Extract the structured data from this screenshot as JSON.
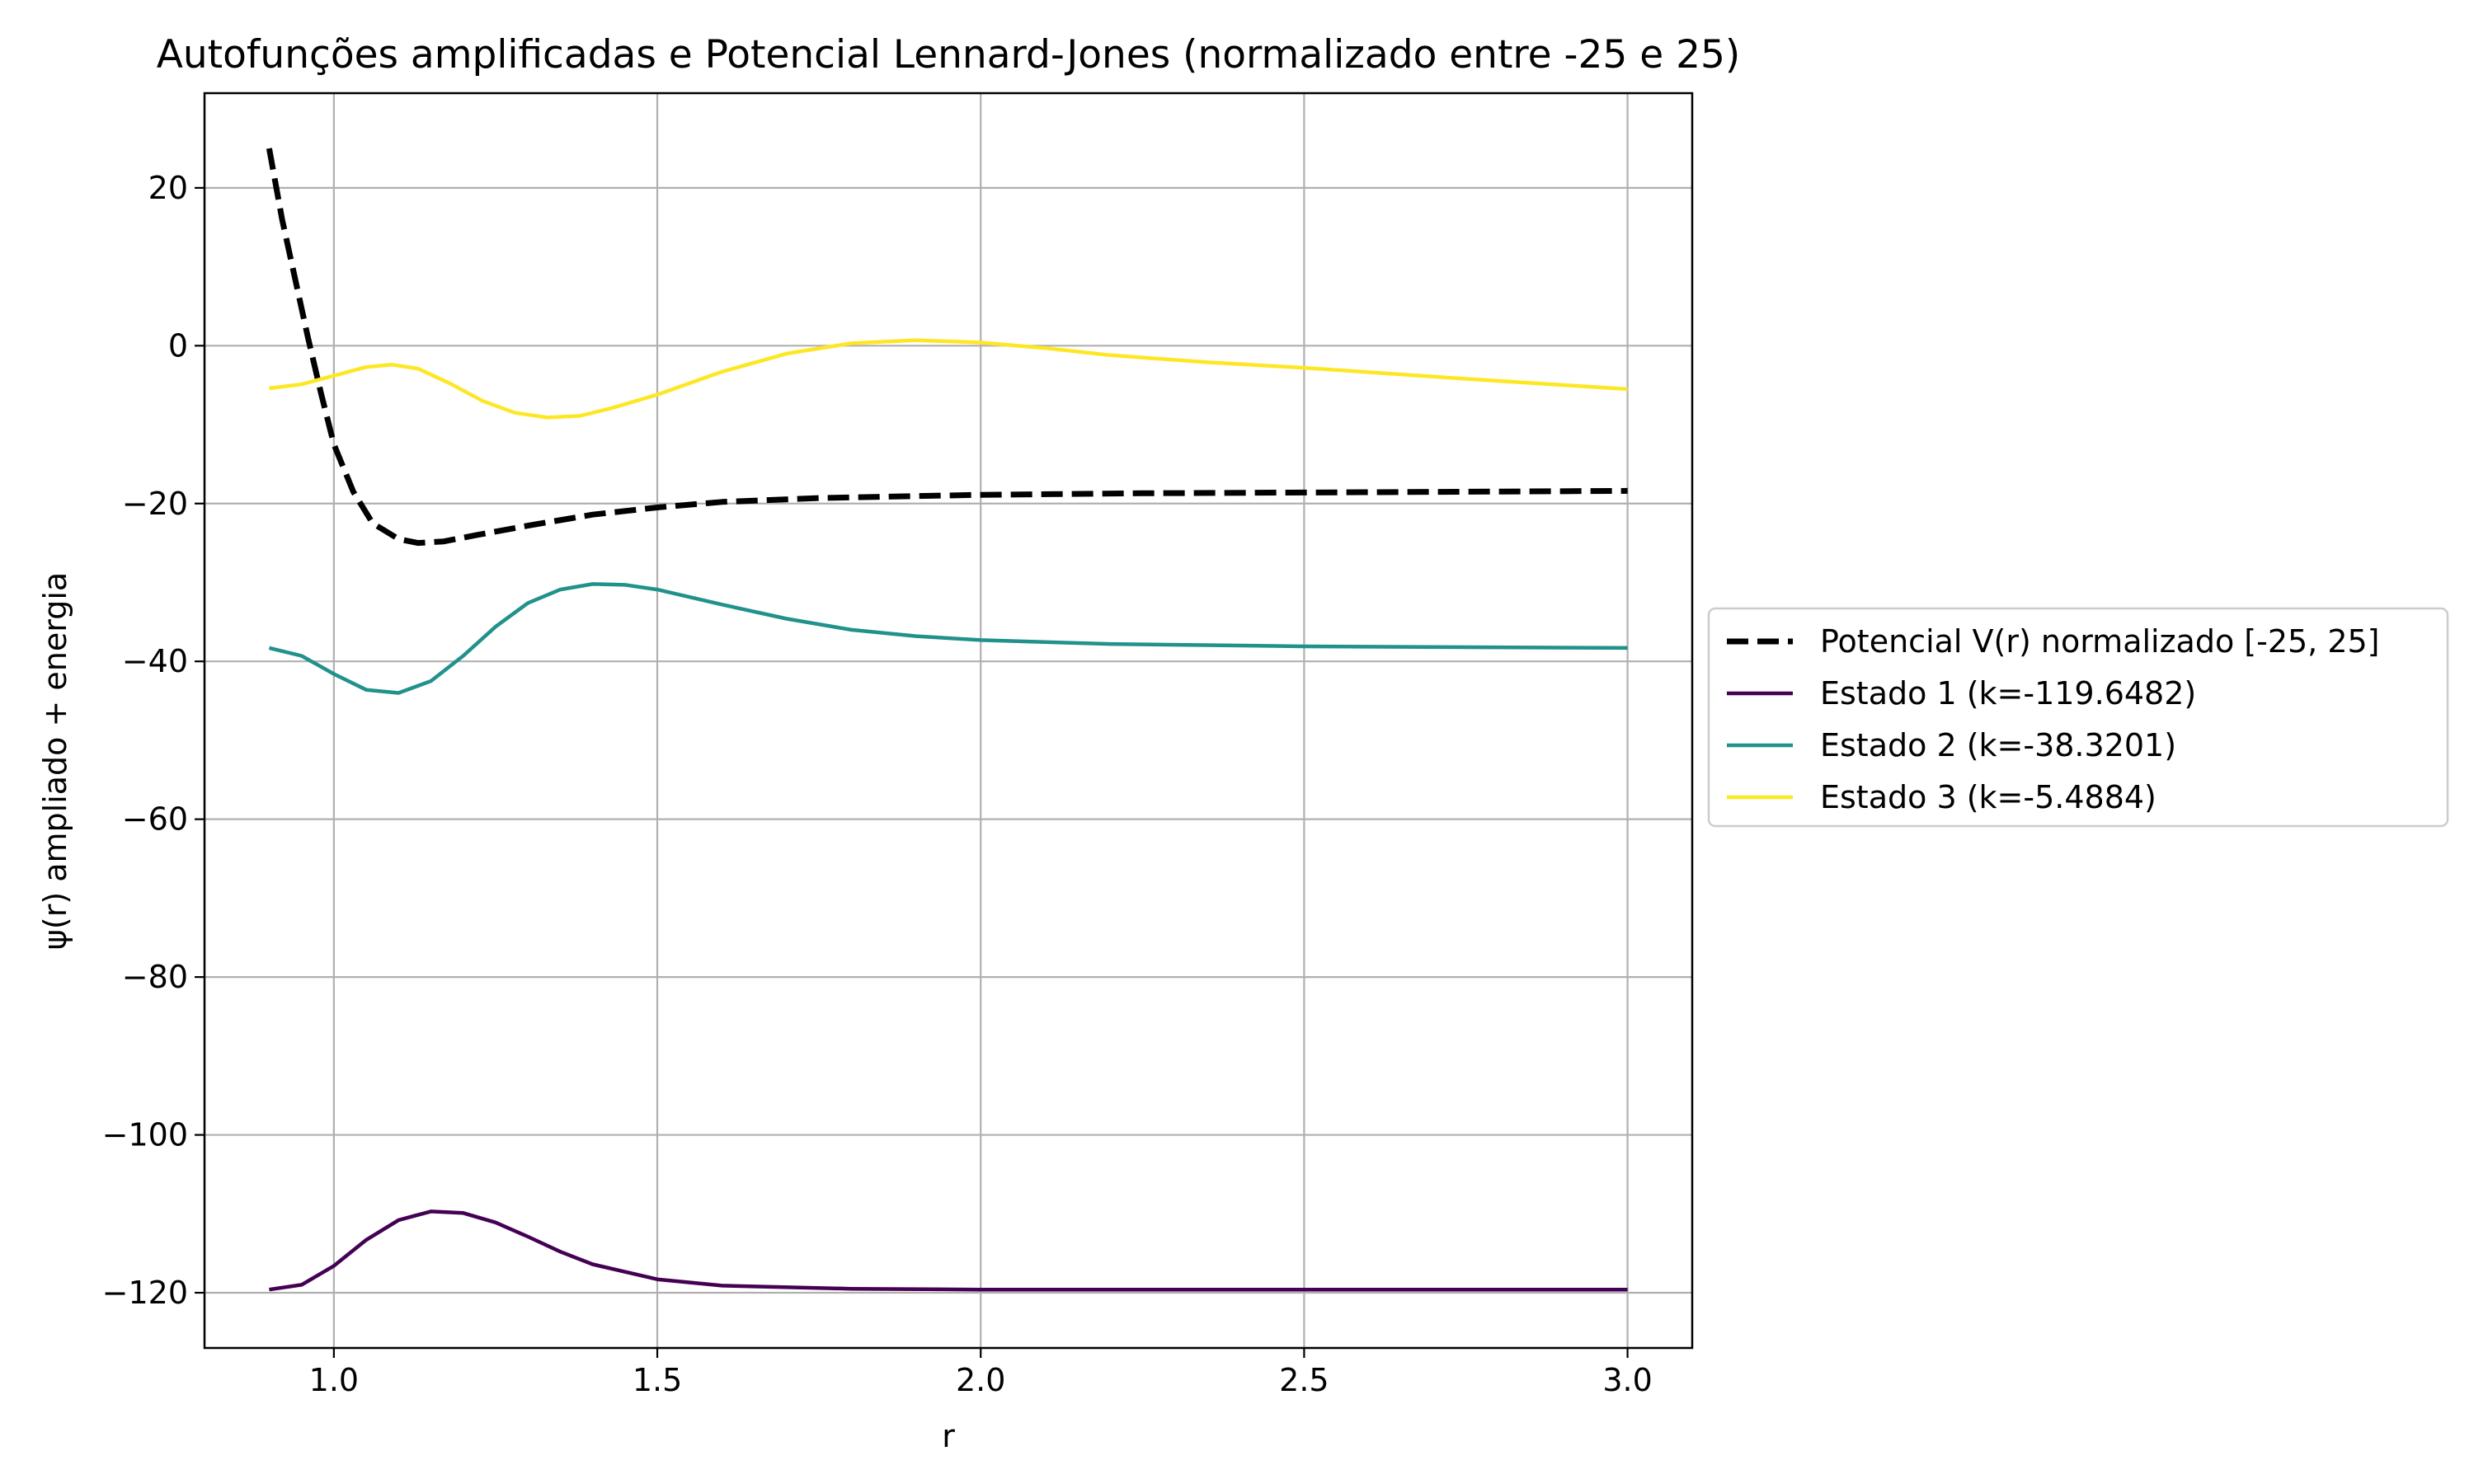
{
  "chart_data": {
    "type": "line",
    "title": "Autofunções amplificadas e Potencial Lennard-Jones (normalizado entre -25 e 25)",
    "xlabel": "r",
    "ylabel": "ψ(r) ampliado + energia",
    "xlim": [
      0.8,
      3.1
    ],
    "ylim": [
      -127,
      32
    ],
    "xticks": [
      1.0,
      1.5,
      2.0,
      2.5,
      3.0
    ],
    "xtick_labels": [
      "1.0",
      "1.5",
      "2.0",
      "2.5",
      "3.0"
    ],
    "yticks": [
      20,
      0,
      -20,
      -40,
      -60,
      -80,
      -100,
      -120
    ],
    "ytick_labels": [
      "20",
      "0",
      "−20",
      "−40",
      "−60",
      "−80",
      "−100",
      "−120"
    ],
    "grid": true,
    "legend_position": "center-right-outside",
    "series": [
      {
        "name": "Potencial V(r) normalizado [-25, 25]",
        "color": "#000000",
        "dashed": true,
        "points": [
          [
            0.9,
            25.0
          ],
          [
            0.92,
            16.0
          ],
          [
            0.94,
            8.5
          ],
          [
            0.96,
            1.0
          ],
          [
            0.98,
            -6.0
          ],
          [
            1.0,
            -12.5
          ],
          [
            1.03,
            -18.5
          ],
          [
            1.06,
            -22.5
          ],
          [
            1.1,
            -24.5
          ],
          [
            1.13,
            -25.0
          ],
          [
            1.17,
            -24.8
          ],
          [
            1.22,
            -24.0
          ],
          [
            1.3,
            -22.8
          ],
          [
            1.4,
            -21.4
          ],
          [
            1.5,
            -20.5
          ],
          [
            1.6,
            -19.8
          ],
          [
            1.75,
            -19.3
          ],
          [
            2.0,
            -18.9
          ],
          [
            2.25,
            -18.7
          ],
          [
            2.5,
            -18.6
          ],
          [
            2.75,
            -18.5
          ],
          [
            3.0,
            -18.4
          ]
        ]
      },
      {
        "name": "Estado 1 (k=-119.6482)",
        "color": "#440154",
        "dashed": false,
        "points": [
          [
            0.9,
            -119.6
          ],
          [
            0.95,
            -119.0
          ],
          [
            1.0,
            -116.6
          ],
          [
            1.05,
            -113.3
          ],
          [
            1.1,
            -110.8
          ],
          [
            1.15,
            -109.7
          ],
          [
            1.2,
            -109.9
          ],
          [
            1.25,
            -111.1
          ],
          [
            1.3,
            -112.9
          ],
          [
            1.35,
            -114.8
          ],
          [
            1.4,
            -116.4
          ],
          [
            1.5,
            -118.3
          ],
          [
            1.6,
            -119.1
          ],
          [
            1.8,
            -119.5
          ],
          [
            2.0,
            -119.6
          ],
          [
            3.0,
            -119.6
          ]
        ]
      },
      {
        "name": "Estado 2 (k=-38.3201)",
        "color": "#21918c",
        "dashed": false,
        "points": [
          [
            0.9,
            -38.3
          ],
          [
            0.95,
            -39.3
          ],
          [
            1.0,
            -41.6
          ],
          [
            1.05,
            -43.6
          ],
          [
            1.1,
            -44.0
          ],
          [
            1.15,
            -42.5
          ],
          [
            1.2,
            -39.3
          ],
          [
            1.25,
            -35.6
          ],
          [
            1.3,
            -32.6
          ],
          [
            1.35,
            -30.9
          ],
          [
            1.4,
            -30.2
          ],
          [
            1.45,
            -30.3
          ],
          [
            1.5,
            -30.9
          ],
          [
            1.6,
            -32.8
          ],
          [
            1.7,
            -34.6
          ],
          [
            1.8,
            -36.0
          ],
          [
            1.9,
            -36.8
          ],
          [
            2.0,
            -37.3
          ],
          [
            2.2,
            -37.8
          ],
          [
            2.5,
            -38.1
          ],
          [
            3.0,
            -38.3
          ]
        ]
      },
      {
        "name": "Estado 3 (k=-5.4884)",
        "color": "#fde725",
        "dashed": false,
        "points": [
          [
            0.9,
            -5.4
          ],
          [
            0.95,
            -4.9
          ],
          [
            1.0,
            -3.8
          ],
          [
            1.05,
            -2.7
          ],
          [
            1.09,
            -2.4
          ],
          [
            1.13,
            -2.9
          ],
          [
            1.18,
            -4.8
          ],
          [
            1.23,
            -7.0
          ],
          [
            1.28,
            -8.5
          ],
          [
            1.33,
            -9.1
          ],
          [
            1.38,
            -8.9
          ],
          [
            1.43,
            -7.9
          ],
          [
            1.5,
            -6.2
          ],
          [
            1.6,
            -3.3
          ],
          [
            1.7,
            -1.0
          ],
          [
            1.8,
            0.3
          ],
          [
            1.9,
            0.7
          ],
          [
            2.0,
            0.4
          ],
          [
            2.1,
            -0.3
          ],
          [
            2.2,
            -1.2
          ],
          [
            2.35,
            -2.1
          ],
          [
            2.5,
            -2.8
          ],
          [
            2.75,
            -4.2
          ],
          [
            3.0,
            -5.5
          ]
        ]
      }
    ]
  }
}
